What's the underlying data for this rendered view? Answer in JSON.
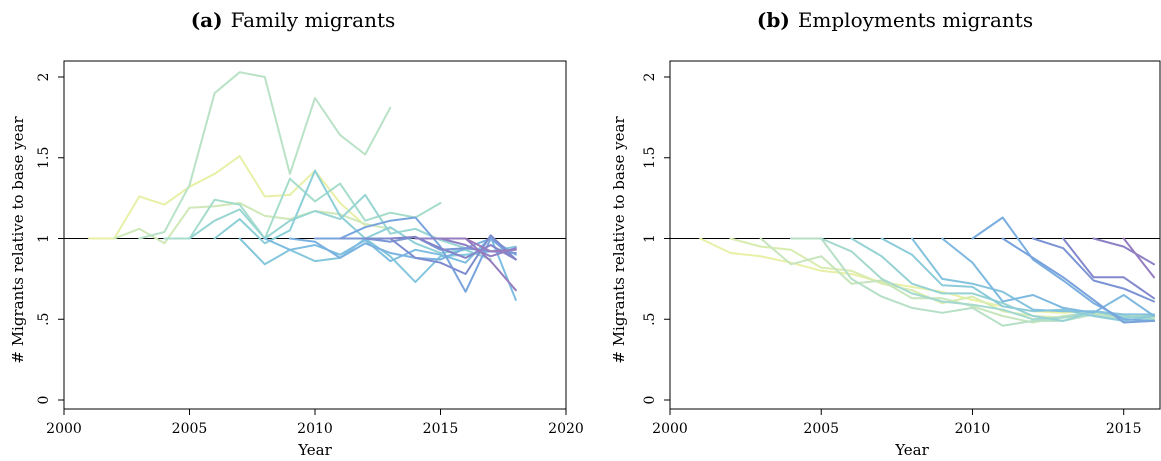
{
  "chart_data": [
    {
      "type": "line",
      "title_prefix": "(a)",
      "title": "Family migrants",
      "xlabel": "Year",
      "ylabel": "# Migrants relative to base year",
      "xlim": [
        2000,
        2020
      ],
      "ylim": [
        0,
        2
      ],
      "xticks": [
        2000,
        2005,
        2010,
        2015,
        2020
      ],
      "xtick_labels": [
        "2000",
        "2005",
        "2010",
        "2015",
        "2020"
      ],
      "yticks": [
        0,
        0.5,
        1,
        1.5,
        2
      ],
      "ytick_labels": [
        "0",
        ".5",
        "1",
        "1.5",
        "2"
      ],
      "reference_line": 1,
      "grid": false,
      "series": [
        {
          "color": "#e8f0a6",
          "x": [
            2001,
            2002,
            2003,
            2004,
            2005,
            2006,
            2007,
            2008,
            2009,
            2010,
            2011,
            2012
          ],
          "y": [
            1.0,
            1.0,
            1.26,
            1.21,
            1.32,
            1.4,
            1.51,
            1.26,
            1.27,
            1.42,
            1.22,
            1.08
          ]
        },
        {
          "color": "#cfe8b8",
          "x": [
            2002,
            2003,
            2004,
            2005,
            2006,
            2007,
            2008,
            2009,
            2010,
            2011,
            2012,
            2013
          ],
          "y": [
            1.0,
            1.06,
            0.97,
            1.19,
            1.2,
            1.22,
            1.14,
            1.12,
            1.17,
            1.15,
            1.09,
            1.06
          ]
        },
        {
          "color": "#b9e2c6",
          "x": [
            2003,
            2004,
            2005,
            2006,
            2007,
            2008,
            2009,
            2010,
            2011,
            2012,
            2013
          ],
          "y": [
            1.0,
            1.04,
            1.33,
            1.9,
            2.03,
            2.0,
            1.4,
            1.87,
            1.64,
            1.52,
            1.81
          ]
        },
        {
          "color": "#a6dccc",
          "x": [
            2004,
            2005,
            2006,
            2007,
            2008,
            2009,
            2010,
            2011,
            2012,
            2013,
            2014,
            2015
          ],
          "y": [
            1.0,
            1.0,
            1.24,
            1.21,
            1.0,
            1.37,
            1.23,
            1.34,
            1.11,
            1.16,
            1.13,
            1.22
          ]
        },
        {
          "color": "#98d5d2",
          "x": [
            2005,
            2006,
            2007,
            2008,
            2009,
            2010,
            2011,
            2012,
            2013,
            2014,
            2015,
            2016
          ],
          "y": [
            1.0,
            1.11,
            1.18,
            1.0,
            1.11,
            1.17,
            1.12,
            1.27,
            1.03,
            1.06,
            0.99,
            0.94
          ]
        },
        {
          "color": "#8ccfd7",
          "x": [
            2006,
            2007,
            2008,
            2009,
            2010,
            2011,
            2012,
            2013,
            2014,
            2015,
            2016,
            2017
          ],
          "y": [
            1.0,
            1.12,
            0.97,
            1.05,
            1.42,
            1.14,
            1.0,
            1.07,
            0.97,
            0.91,
            0.93,
            0.87
          ]
        },
        {
          "color": "#84c7dc",
          "x": [
            2007,
            2008,
            2009,
            2010,
            2011,
            2012,
            2013,
            2014,
            2015,
            2016,
            2017,
            2018
          ],
          "y": [
            1.0,
            0.84,
            0.93,
            0.86,
            0.88,
            1.0,
            0.89,
            0.73,
            0.89,
            0.9,
            0.92,
            0.95
          ]
        },
        {
          "color": "#7ebde0",
          "x": [
            2008,
            2009,
            2010,
            2011,
            2012,
            2013,
            2014,
            2015,
            2016,
            2017,
            2018
          ],
          "y": [
            1.0,
            0.93,
            0.96,
            0.9,
            0.99,
            0.86,
            0.93,
            0.9,
            0.85,
            1.01,
            0.62
          ]
        },
        {
          "color": "#7ab1e0",
          "x": [
            2009,
            2010,
            2011,
            2012,
            2013,
            2014,
            2015,
            2016,
            2017,
            2018
          ],
          "y": [
            1.0,
            0.98,
            0.88,
            0.97,
            0.91,
            0.88,
            0.87,
            0.94,
            1.0,
            0.9
          ]
        },
        {
          "color": "#78a4dd",
          "x": [
            2010,
            2011,
            2012,
            2013,
            2014,
            2015,
            2016,
            2017,
            2018
          ],
          "y": [
            1.0,
            1.0,
            1.07,
            1.11,
            1.13,
            0.95,
            0.67,
            1.0,
            0.87
          ]
        },
        {
          "color": "#7a97d6",
          "x": [
            2011,
            2012,
            2013,
            2014,
            2015,
            2016,
            2017,
            2018
          ],
          "y": [
            1.0,
            1.0,
            0.98,
            1.01,
            0.93,
            0.94,
            0.92,
            0.91
          ]
        },
        {
          "color": "#7e8ccf",
          "x": [
            2012,
            2013,
            2014,
            2015,
            2016,
            2017,
            2018
          ],
          "y": [
            1.0,
            1.0,
            0.88,
            0.85,
            0.78,
            1.02,
            0.87
          ]
        },
        {
          "color": "#8584c8",
          "x": [
            2013,
            2014,
            2015,
            2016,
            2017,
            2018
          ],
          "y": [
            1.0,
            1.01,
            0.94,
            0.88,
            0.96,
            0.87
          ]
        },
        {
          "color": "#8d80c4",
          "x": [
            2014,
            2015,
            2016,
            2017,
            2018
          ],
          "y": [
            1.0,
            1.0,
            0.96,
            0.89,
            0.94
          ]
        },
        {
          "color": "#957dc0",
          "x": [
            2015,
            2016,
            2017,
            2018
          ],
          "y": [
            1.0,
            1.0,
            0.86,
            0.68
          ]
        },
        {
          "color": "#9b7bbd",
          "x": [
            2016,
            2017,
            2018
          ],
          "y": [
            1.0,
            0.92,
            0.93
          ]
        }
      ]
    },
    {
      "type": "line",
      "title_prefix": "(b)",
      "title": "Employments migrants",
      "xlabel": "Year",
      "ylabel": "# Migrants relative to base year",
      "xlim": [
        2000,
        2016.2
      ],
      "ylim": [
        0,
        2
      ],
      "xticks": [
        2000,
        2005,
        2010,
        2015
      ],
      "xtick_labels": [
        "2000",
        "2005",
        "2010",
        "2015"
      ],
      "yticks": [
        0,
        0.5,
        1,
        1.5,
        2
      ],
      "ytick_labels": [
        "0",
        ".5",
        "1",
        "1.5",
        "2"
      ],
      "reference_line": 1,
      "grid": false,
      "series": [
        {
          "color": "#e8f0a6",
          "x": [
            2001,
            2002,
            2003,
            2004,
            2005,
            2006,
            2007,
            2008,
            2009,
            2010,
            2011,
            2012,
            2013,
            2014,
            2015,
            2016
          ],
          "y": [
            1.0,
            0.91,
            0.89,
            0.85,
            0.8,
            0.78,
            0.73,
            0.7,
            0.67,
            0.62,
            0.58,
            0.55,
            0.54,
            0.55,
            0.52,
            0.52
          ]
        },
        {
          "color": "#d8ecb0",
          "x": [
            2002,
            2003,
            2004,
            2005,
            2006,
            2007,
            2008,
            2009,
            2010,
            2011,
            2012,
            2013,
            2014,
            2015,
            2016
          ],
          "y": [
            1.0,
            0.95,
            0.93,
            0.82,
            0.8,
            0.72,
            0.68,
            0.6,
            0.64,
            0.55,
            0.52,
            0.51,
            0.53,
            0.52,
            0.51
          ]
        },
        {
          "color": "#c7e5bc",
          "x": [
            2003,
            2004,
            2005,
            2006,
            2007,
            2008,
            2009,
            2010,
            2011,
            2012,
            2013,
            2014,
            2015,
            2016
          ],
          "y": [
            1.0,
            0.84,
            0.89,
            0.72,
            0.74,
            0.63,
            0.63,
            0.58,
            0.52,
            0.48,
            0.52,
            0.54,
            0.53,
            0.5
          ]
        },
        {
          "color": "#b6dfc6",
          "x": [
            2004,
            2005,
            2006,
            2007,
            2008,
            2009,
            2010,
            2011,
            2012,
            2013,
            2014,
            2015,
            2016
          ],
          "y": [
            1.0,
            1.0,
            0.75,
            0.64,
            0.57,
            0.54,
            0.57,
            0.46,
            0.49,
            0.49,
            0.53,
            0.5,
            0.49
          ]
        },
        {
          "color": "#a5d9ce",
          "x": [
            2005,
            2006,
            2007,
            2008,
            2009,
            2010,
            2011,
            2012,
            2013,
            2014,
            2015,
            2016
          ],
          "y": [
            1.0,
            0.92,
            0.75,
            0.66,
            0.61,
            0.59,
            0.56,
            0.5,
            0.51,
            0.55,
            0.52,
            0.5
          ]
        },
        {
          "color": "#96d2d4",
          "x": [
            2006,
            2007,
            2008,
            2009,
            2010,
            2011,
            2012,
            2013,
            2014,
            2015,
            2016
          ],
          "y": [
            1.0,
            0.89,
            0.72,
            0.66,
            0.66,
            0.6,
            0.52,
            0.49,
            0.55,
            0.51,
            0.52
          ]
        },
        {
          "color": "#8ccbd9",
          "x": [
            2007,
            2008,
            2009,
            2010,
            2011,
            2012,
            2013,
            2014,
            2015,
            2016
          ],
          "y": [
            1.0,
            0.9,
            0.71,
            0.7,
            0.58,
            0.55,
            0.56,
            0.52,
            0.49,
            0.52
          ]
        },
        {
          "color": "#84c2dd",
          "x": [
            2008,
            2009,
            2010,
            2011,
            2012,
            2013,
            2014,
            2015,
            2016
          ],
          "y": [
            1.0,
            0.75,
            0.72,
            0.67,
            0.56,
            0.55,
            0.55,
            0.53,
            0.53
          ]
        },
        {
          "color": "#7eb9e0",
          "x": [
            2009,
            2010,
            2011,
            2012,
            2013,
            2014,
            2015,
            2016
          ],
          "y": [
            1.0,
            0.85,
            0.61,
            0.65,
            0.57,
            0.54,
            0.65,
            0.52
          ]
        },
        {
          "color": "#7aaee0",
          "x": [
            2010,
            2011,
            2012,
            2013,
            2014,
            2015,
            2016
          ],
          "y": [
            1.0,
            1.13,
            0.87,
            0.74,
            0.6,
            0.5,
            0.49
          ]
        },
        {
          "color": "#78a2dc",
          "x": [
            2011,
            2012,
            2013,
            2014,
            2015,
            2016
          ],
          "y": [
            1.0,
            0.88,
            0.76,
            0.62,
            0.48,
            0.49
          ]
        },
        {
          "color": "#7b94d5",
          "x": [
            2012,
            2013,
            2014,
            2015,
            2016
          ],
          "y": [
            1.0,
            0.94,
            0.74,
            0.69,
            0.61
          ]
        },
        {
          "color": "#8388cc",
          "x": [
            2013,
            2014,
            2015,
            2016
          ],
          "y": [
            1.0,
            0.76,
            0.76,
            0.63
          ]
        },
        {
          "color": "#8d80c4",
          "x": [
            2014,
            2015,
            2016
          ],
          "y": [
            1.0,
            0.95,
            0.84
          ]
        },
        {
          "color": "#967dbf",
          "x": [
            2015,
            2016
          ],
          "y": [
            1.0,
            0.76
          ]
        }
      ]
    }
  ]
}
